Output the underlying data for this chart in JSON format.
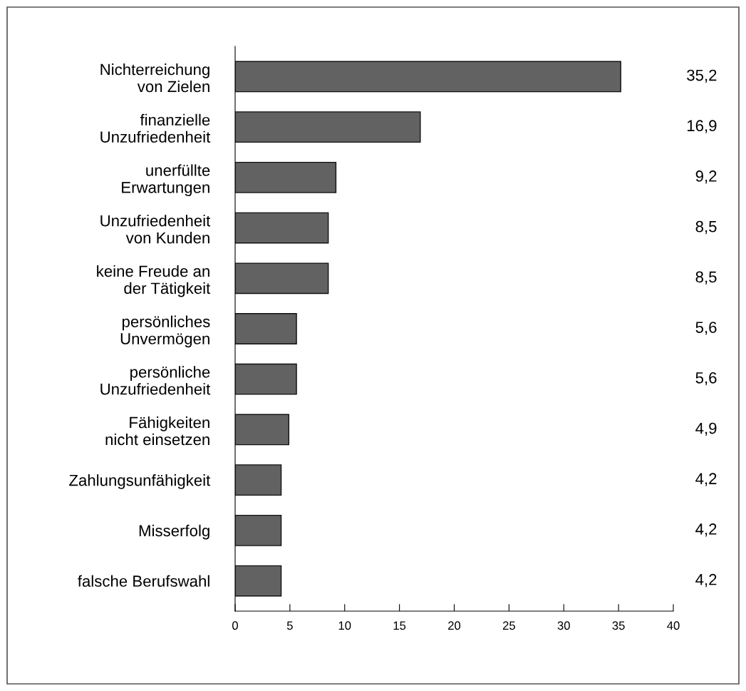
{
  "chart_data": {
    "type": "bar",
    "orientation": "horizontal",
    "categories": [
      "Nichterreichung\nvon Zielen",
      "finanzielle\nUnzufriedenheit",
      "unerfüllte\nErwartungen",
      "Unzufriedenheit\nvon Kunden",
      "keine Freude an\nder Tätigkeit",
      "persönliches\nUnvermögen",
      "persönliche\nUnzufriedenheit",
      "Fähigkeiten\nnicht einsetzen",
      "Zahlungsunfähigkeit",
      "Misserfolg",
      "falsche Berufswahl"
    ],
    "values": [
      35.2,
      16.9,
      9.2,
      8.5,
      8.5,
      5.6,
      5.6,
      4.9,
      4.2,
      4.2,
      4.2
    ],
    "value_labels": [
      "35,2",
      "16,9",
      "9,2",
      "8,5",
      "8,5",
      "5,6",
      "5,6",
      "4,9",
      "4,2",
      "4,2",
      "4,2"
    ],
    "color": "#626262",
    "xlim": [
      0,
      40
    ],
    "xticks": [
      0,
      5,
      10,
      15,
      20,
      25,
      30,
      35,
      40
    ],
    "grid": false,
    "legend": false
  }
}
